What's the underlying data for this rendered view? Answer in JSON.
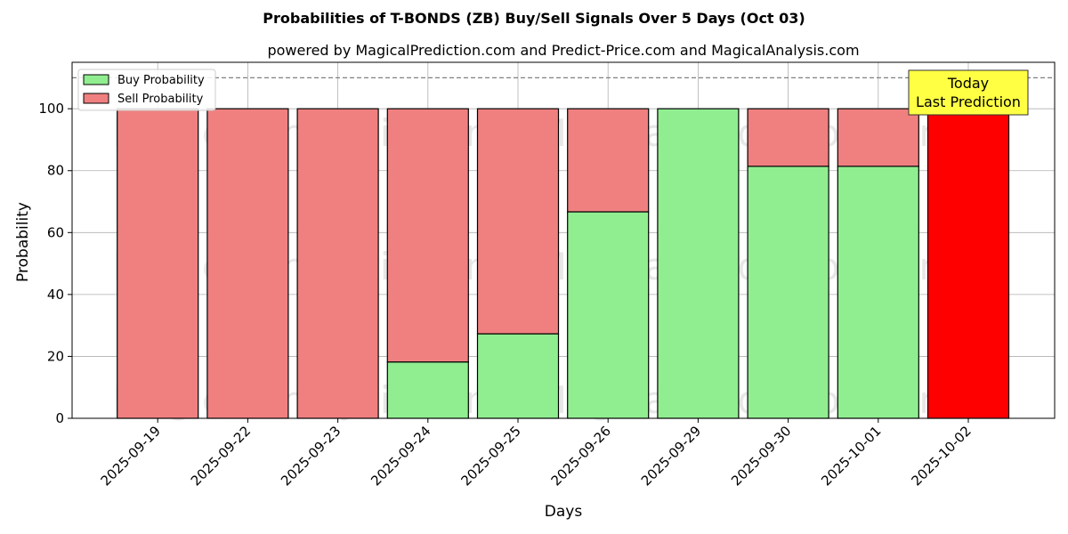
{
  "chart_data": {
    "type": "bar",
    "stacked": true,
    "title": "Probabilities of T-BONDS (ZB) Buy/Sell Signals Over 5 Days (Oct 03)",
    "subtitle": "powered by MagicalPrediction.com and Predict-Price.com and MagicalAnalysis.com",
    "xlabel": "Days",
    "ylabel": "Probability",
    "ylim": [
      0,
      115
    ],
    "yticks": [
      0,
      20,
      40,
      60,
      80,
      100
    ],
    "grid": true,
    "legend_position": "top-left",
    "categories": [
      "2025-09-19",
      "2025-09-22",
      "2025-09-23",
      "2025-09-24",
      "2025-09-25",
      "2025-09-26",
      "2025-09-29",
      "2025-09-30",
      "2025-10-01",
      "2025-10-02"
    ],
    "series": [
      {
        "name": "Buy Probability",
        "color": "#90ee90",
        "values": [
          0,
          0,
          0,
          18.2,
          27.3,
          66.7,
          100,
          81.4,
          81.4,
          0
        ]
      },
      {
        "name": "Sell Probability",
        "color": "#f08080",
        "values": [
          100,
          100,
          100,
          81.8,
          72.7,
          33.3,
          0,
          18.6,
          18.6,
          100
        ]
      }
    ],
    "highlight": {
      "category": "2025-10-02",
      "color": "#ff0000"
    },
    "reference_line": {
      "y": 110,
      "style": "dashed",
      "color": "#808080"
    },
    "annotation": {
      "lines": [
        "Today",
        "Last Prediction"
      ],
      "background": "#ffff44"
    },
    "watermarks": [
      "MagicalAnalysis.com",
      "MagicalPrediction.com"
    ]
  }
}
